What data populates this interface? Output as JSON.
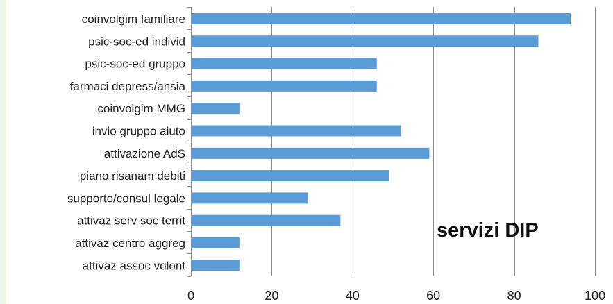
{
  "chart_data": {
    "type": "bar",
    "orientation": "horizontal",
    "title": "",
    "xlabel": "",
    "ylabel": "",
    "categories": [
      "coinvolgim familiare",
      "psic-soc-ed individ",
      "psic-soc-ed gruppo",
      "farmaci depress/ansia",
      "coinvolgim MMG",
      "invio gruppo aiuto",
      "attivazione AdS",
      "piano risanam debiti",
      "supporto/consul legale",
      "attivaz serv soc territ",
      "attivaz centro aggreg",
      "attivaz assoc volont"
    ],
    "values": [
      94,
      86,
      46,
      46,
      12,
      52,
      59,
      49,
      29,
      37,
      12,
      12
    ],
    "xlim": [
      0,
      100
    ],
    "xticks": [
      0,
      20,
      40,
      60,
      80,
      100
    ],
    "grid": "vertical",
    "bar_color": "#5b9bd5",
    "annotation": "servizi DIP"
  }
}
